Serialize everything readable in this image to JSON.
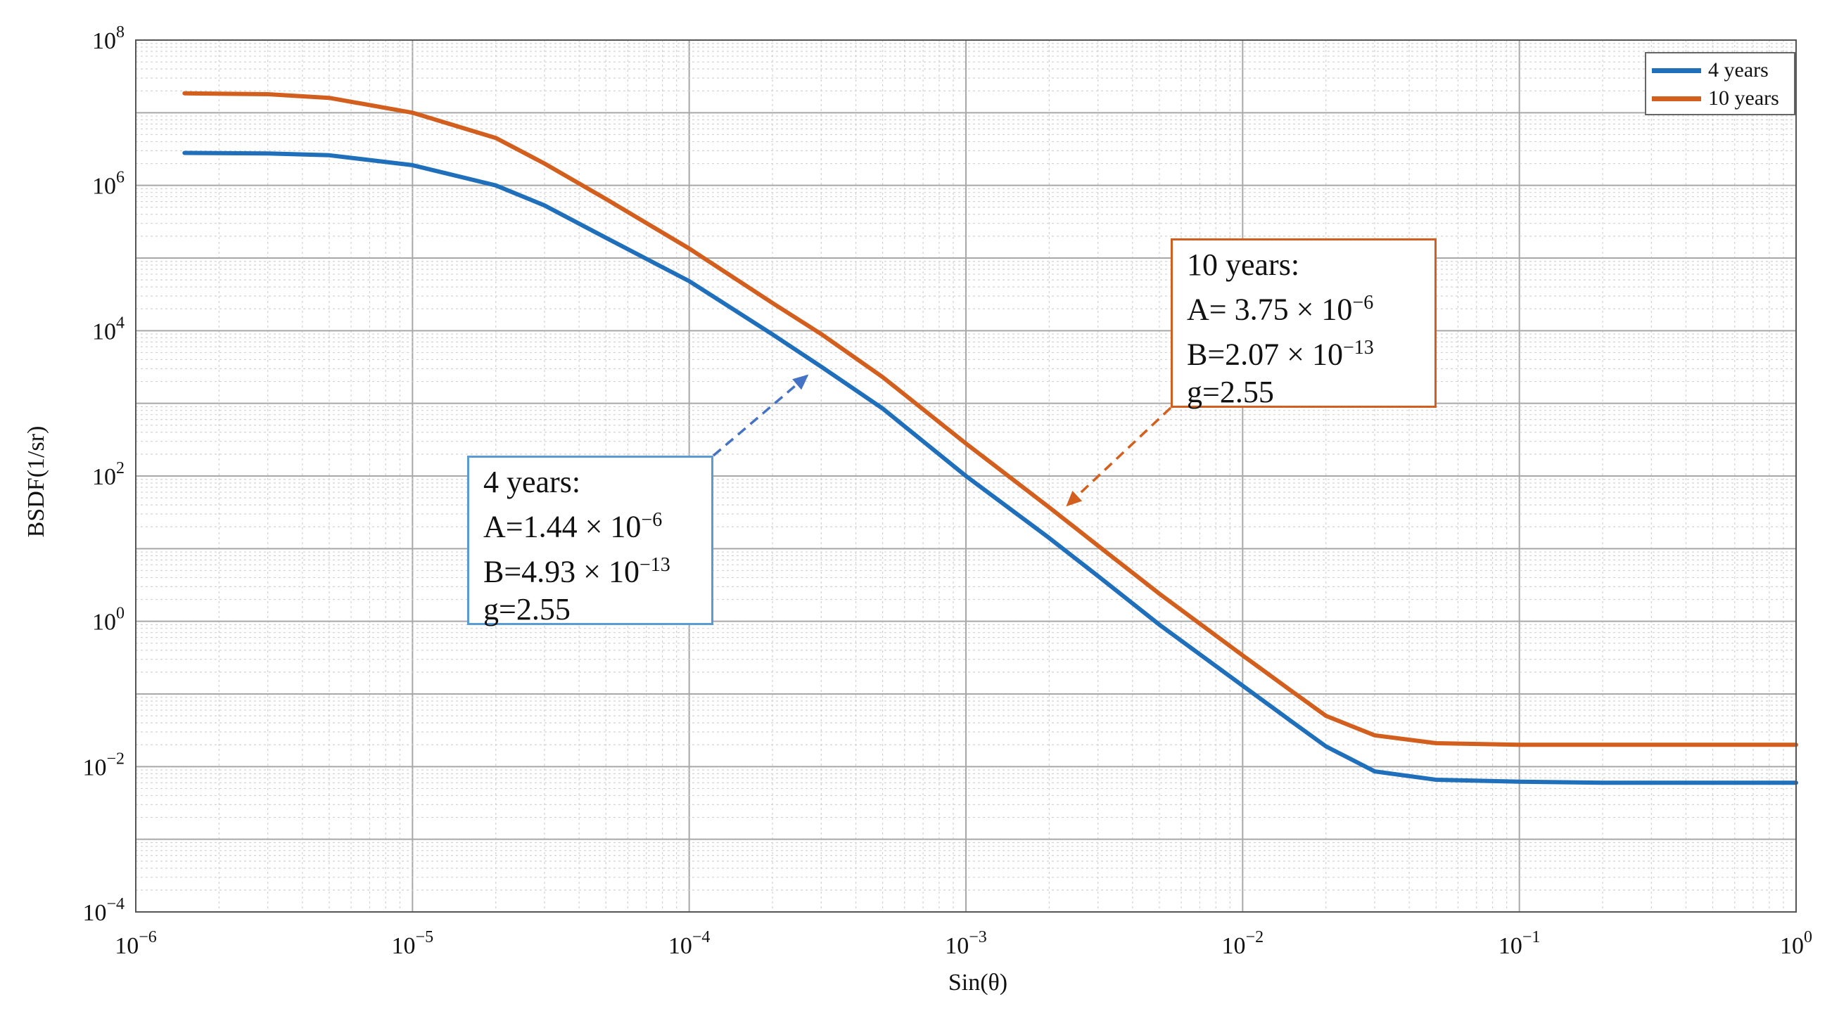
{
  "chart_data": {
    "type": "line",
    "xscale": "log",
    "yscale": "log",
    "xlim": [
      1e-06,
      1
    ],
    "ylim": [
      0.0001,
      100000000.0
    ],
    "grid": true,
    "minor_grid": true,
    "xlabel": "Sin(θ)",
    "ylabel": "BSDF(1/sr)",
    "x_ticks": [
      {
        "value": 1e-06,
        "base": "10",
        "exp": "−6"
      },
      {
        "value": 1e-05,
        "base": "10",
        "exp": "−5"
      },
      {
        "value": 0.0001,
        "base": "10",
        "exp": "−4"
      },
      {
        "value": 0.001,
        "base": "10",
        "exp": "−3"
      },
      {
        "value": 0.01,
        "base": "10",
        "exp": "−2"
      },
      {
        "value": 0.1,
        "base": "10",
        "exp": "−1"
      },
      {
        "value": 1,
        "base": "10",
        "exp": "0"
      }
    ],
    "y_ticks": [
      {
        "value": 0.0001,
        "base": "10",
        "exp": "−4"
      },
      {
        "value": 0.01,
        "base": "10",
        "exp": "−2"
      },
      {
        "value": 1,
        "base": "10",
        "exp": "0"
      },
      {
        "value": 100.0,
        "base": "10",
        "exp": "2"
      },
      {
        "value": 10000.0,
        "base": "10",
        "exp": "4"
      },
      {
        "value": 1000000.0,
        "base": "10",
        "exp": "6"
      },
      {
        "value": 100000000.0,
        "base": "10",
        "exp": "8"
      }
    ],
    "legend_position": "top-right",
    "series": [
      {
        "name": "4 years",
        "color": "#1f6fba",
        "x": [
          1.5e-06,
          3e-06,
          5e-06,
          1e-05,
          2e-05,
          3e-05,
          5e-05,
          0.0001,
          0.0002,
          0.0003,
          0.0005,
          0.001,
          0.002,
          0.003,
          0.005,
          0.01,
          0.015,
          0.02,
          0.03,
          0.05,
          0.1,
          0.2,
          0.5,
          1
        ],
        "y": [
          2800000.0,
          2750000.0,
          2600000.0,
          1900000.0,
          1000000.0,
          530000.0,
          190000.0,
          48000.0,
          8900.0,
          3200.0,
          850.0,
          100.0,
          14.0,
          4.2,
          0.9,
          0.13,
          0.042,
          0.019,
          0.0086,
          0.0066,
          0.0062,
          0.006,
          0.006,
          0.006
        ]
      },
      {
        "name": "10 years",
        "color": "#d35f1e",
        "x": [
          1.5e-06,
          3e-06,
          5e-06,
          1e-05,
          2e-05,
          3e-05,
          5e-05,
          0.0001,
          0.0002,
          0.0003,
          0.0005,
          0.001,
          0.002,
          0.003,
          0.005,
          0.01,
          0.015,
          0.02,
          0.03,
          0.05,
          0.1,
          0.2,
          0.5,
          1
        ],
        "y": [
          18500000.0,
          18000000.0,
          16000000.0,
          10000000.0,
          4500000.0,
          2000000.0,
          650000.0,
          135000.0,
          24000.0,
          9000.0,
          2300.0,
          280.0,
          37.0,
          11.0,
          2.4,
          0.34,
          0.11,
          0.05,
          0.027,
          0.021,
          0.02,
          0.02,
          0.02,
          0.02
        ]
      }
    ],
    "annotations": [
      {
        "color": "#d35f1e",
        "lines": [
          {
            "text": "10  years:"
          },
          {
            "text": "A= 3.75 × 10",
            "sup": "−6"
          },
          {
            "text": "B=2.07 × 10",
            "sup": "−13"
          },
          {
            "text": "g=2.55"
          }
        ],
        "arrow_tip": {
          "x": 0.0023,
          "y": 38
        }
      },
      {
        "color": "#4472c4",
        "lines": [
          {
            "text": "4  years:"
          },
          {
            "text": "A=1.44 × 10",
            "sup": "−6"
          },
          {
            "text": "B=4.93 × 10",
            "sup": "−13"
          },
          {
            "text": "g=2.55"
          }
        ],
        "arrow_tip": {
          "x": 0.00027,
          "y": 2500.0
        }
      }
    ]
  }
}
